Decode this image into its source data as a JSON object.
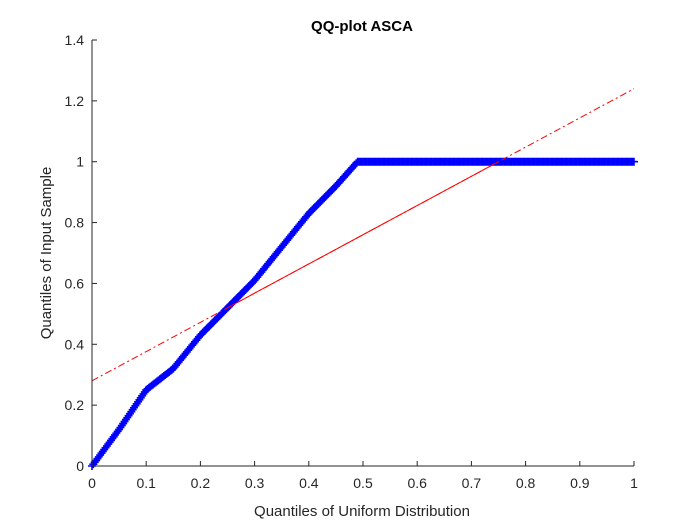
{
  "chart_data": {
    "type": "scatter",
    "title": "QQ-plot ASCA",
    "xlabel": "Quantiles of Uniform Distribution",
    "ylabel": "Quantiles of Input Sample",
    "xlim": [
      0,
      1
    ],
    "ylim": [
      0,
      1.4
    ],
    "xticks": [
      "0",
      "0.1",
      "0.2",
      "0.3",
      "0.4",
      "0.5",
      "0.6",
      "0.7",
      "0.8",
      "0.9",
      "1"
    ],
    "yticks": [
      "0",
      "0.2",
      "0.4",
      "0.6",
      "0.8",
      "1",
      "1.2",
      "1.4"
    ],
    "grid": false,
    "series": [
      {
        "name": "Sample quantiles",
        "marker": "+",
        "color": "#0000ff",
        "curve": [
          [
            0,
            0
          ],
          [
            0.05,
            0.12
          ],
          [
            0.1,
            0.25
          ],
          [
            0.15,
            0.32
          ],
          [
            0.2,
            0.43
          ],
          [
            0.25,
            0.52
          ],
          [
            0.3,
            0.61
          ],
          [
            0.35,
            0.72
          ],
          [
            0.4,
            0.83
          ],
          [
            0.45,
            0.92
          ],
          [
            0.49,
            1.0
          ],
          [
            1.0,
            1.0
          ]
        ]
      },
      {
        "name": "Reference line (solid)",
        "style": "solid",
        "color": "#ff0000",
        "x": [
          0.25,
          0.75
        ],
        "y": [
          0.52,
          1.0
        ]
      },
      {
        "name": "Reference line (dash-dot)",
        "style": "dash-dot",
        "color": "#ff0000",
        "x": [
          0,
          1
        ],
        "y": [
          0.28,
          1.24
        ]
      }
    ]
  }
}
